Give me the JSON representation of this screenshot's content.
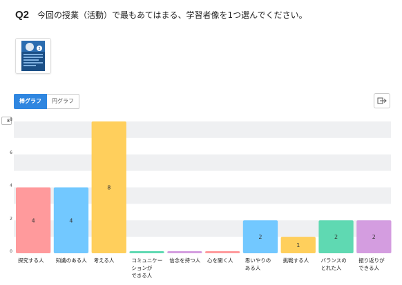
{
  "question": {
    "number": "Q2",
    "text": "今回の授業（活動）で最もあてはまる、学習者像を1つ選んでください。"
  },
  "tabs": {
    "bar": "棒グラフ",
    "pie": "円グラフ"
  },
  "icons": {
    "export": "export-icon",
    "thumbnail": "document-thumbnail"
  },
  "chart_data": {
    "type": "bar",
    "categories": [
      [
        "探究する人"
      ],
      [
        "知識のある人"
      ],
      [
        "考える人"
      ],
      [
        "コミュニケー",
        "ションが",
        "できる人"
      ],
      [
        "信念を持つ人"
      ],
      [
        "心を開く人"
      ],
      [
        "思いやりの",
        "ある人"
      ],
      [
        "挑戦する人"
      ],
      [
        "バランスの",
        "とれた人"
      ],
      [
        "振り返りが",
        "できる人"
      ]
    ],
    "values": [
      4,
      4,
      8,
      0,
      0,
      0,
      2,
      1,
      2,
      2
    ],
    "colors": [
      "#ff9a9c",
      "#72c8ff",
      "#ffcf5c",
      "#5fd9b2",
      "#d49de0",
      "#ff9a9c",
      "#72c8ff",
      "#ffcf5c",
      "#5fd9b2",
      "#d49de0"
    ],
    "yticks": [
      0,
      2,
      4,
      6,
      8
    ],
    "ylim": [
      0,
      8
    ],
    "ymax_label": "8",
    "grid": true
  }
}
